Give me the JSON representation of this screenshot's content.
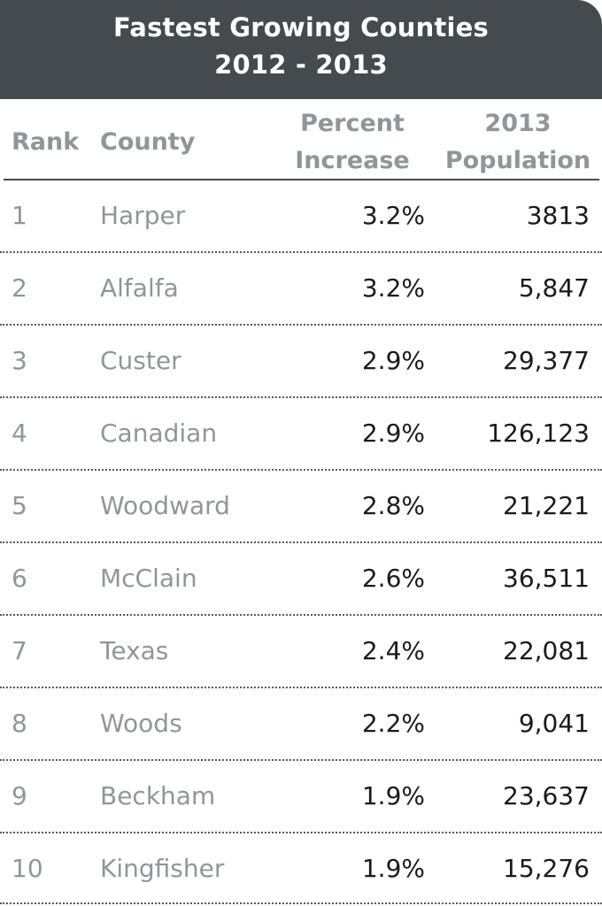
{
  "title": {
    "line1": "Fastest Growing Counties",
    "line2": "2012 - 2013"
  },
  "columns": {
    "rank": "Rank",
    "county": "County",
    "percent_line1": "Percent",
    "percent_line2": "Increase",
    "population_line1": "2013",
    "population_line2": "Population"
  },
  "colors": {
    "title_bar": "#454a4e",
    "muted_text": "#8f969b",
    "value_text": "#1a1a1a"
  },
  "rows": [
    {
      "rank": "1",
      "county": "Harper",
      "percent": "3.2%",
      "population": "3813"
    },
    {
      "rank": "2",
      "county": "Alfalfa",
      "percent": "3.2%",
      "population": "5,847"
    },
    {
      "rank": "3",
      "county": "Custer",
      "percent": "2.9%",
      "population": "29,377"
    },
    {
      "rank": "4",
      "county": "Canadian",
      "percent": "2.9%",
      "population": "126,123"
    },
    {
      "rank": "5",
      "county": "Woodward",
      "percent": "2.8%",
      "population": "21,221"
    },
    {
      "rank": "6",
      "county": "McClain",
      "percent": "2.6%",
      "population": "36,511"
    },
    {
      "rank": "7",
      "county": "Texas",
      "percent": "2.4%",
      "population": "22,081"
    },
    {
      "rank": "8",
      "county": "Woods",
      "percent": "2.2%",
      "population": "9,041"
    },
    {
      "rank": "9",
      "county": "Beckham",
      "percent": "1.9%",
      "population": "23,637"
    },
    {
      "rank": "10",
      "county": "Kingfisher",
      "percent": "1.9%",
      "population": "15,276"
    }
  ]
}
